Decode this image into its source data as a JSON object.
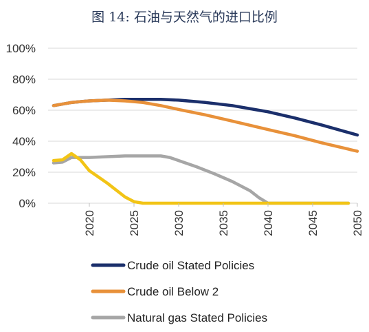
{
  "chart_data": {
    "type": "line",
    "title": "图 14: 石油与天然气的进口比例",
    "xlabel": "",
    "ylabel": "",
    "xlim": [
      2016,
      2050
    ],
    "ylim": [
      0,
      100
    ],
    "x_ticks": [
      2020,
      2025,
      2030,
      2035,
      2040,
      2045,
      2050
    ],
    "y_ticks": [
      0,
      20,
      40,
      60,
      80,
      100
    ],
    "y_tick_labels": [
      "0%",
      "20%",
      "40%",
      "60%",
      "80%",
      "100%"
    ],
    "grid": "horizontal",
    "legend_position": "bottom",
    "series": [
      {
        "name": "Crude oil Stated Policies",
        "color": "#1b2f6b",
        "points": [
          [
            2016,
            63
          ],
          [
            2018,
            65
          ],
          [
            2020,
            66
          ],
          [
            2022,
            66.5
          ],
          [
            2024,
            67
          ],
          [
            2026,
            67
          ],
          [
            2028,
            67
          ],
          [
            2030,
            66.5
          ],
          [
            2033,
            65
          ],
          [
            2036,
            63
          ],
          [
            2040,
            59
          ],
          [
            2043,
            55
          ],
          [
            2046,
            50.5
          ],
          [
            2050,
            44
          ]
        ]
      },
      {
        "name": "Crude oil Below 2",
        "color": "#e8913a",
        "points": [
          [
            2016,
            63
          ],
          [
            2018,
            65
          ],
          [
            2020,
            66
          ],
          [
            2022,
            66.5
          ],
          [
            2024,
            66
          ],
          [
            2026,
            65
          ],
          [
            2028,
            63
          ],
          [
            2030,
            60.5
          ],
          [
            2033,
            57
          ],
          [
            2036,
            53
          ],
          [
            2040,
            47.5
          ],
          [
            2043,
            43.5
          ],
          [
            2046,
            39
          ],
          [
            2050,
            33.5
          ]
        ]
      },
      {
        "name": "Natural gas Stated Policies",
        "color": "#a6a6a6",
        "points": [
          [
            2016,
            26
          ],
          [
            2017,
            26.5
          ],
          [
            2018,
            29.5
          ],
          [
            2020,
            29.5
          ],
          [
            2022,
            30
          ],
          [
            2024,
            30.5
          ],
          [
            2026,
            30.5
          ],
          [
            2028,
            30.5
          ],
          [
            2029,
            29.5
          ],
          [
            2030,
            27.5
          ],
          [
            2032,
            23.5
          ],
          [
            2034,
            19
          ],
          [
            2036,
            14
          ],
          [
            2038,
            8
          ],
          [
            2039,
            3.5
          ],
          [
            2040,
            0
          ],
          [
            2045,
            0
          ],
          [
            2049,
            0
          ]
        ]
      },
      {
        "name": "",
        "color": "#f2c416",
        "points": [
          [
            2016,
            27.5
          ],
          [
            2017,
            28
          ],
          [
            2018,
            32
          ],
          [
            2019,
            28
          ],
          [
            2020,
            21
          ],
          [
            2022,
            13
          ],
          [
            2024,
            4
          ],
          [
            2025,
            1
          ],
          [
            2026,
            0
          ],
          [
            2030,
            0
          ],
          [
            2035,
            0
          ],
          [
            2040,
            0
          ],
          [
            2045,
            0
          ],
          [
            2049,
            0
          ]
        ]
      }
    ]
  }
}
